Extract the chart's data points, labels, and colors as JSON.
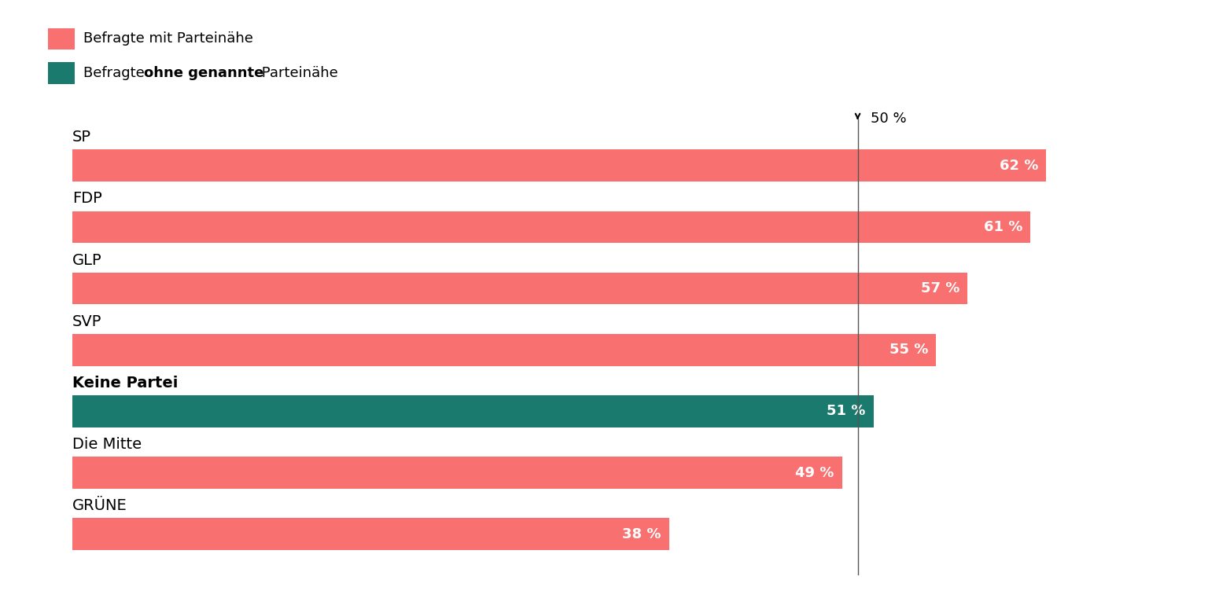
{
  "parties": [
    "SP",
    "FDP",
    "GLP",
    "SVP",
    "Keine Partei",
    "Die Mitte",
    "GRÜNE"
  ],
  "values": [
    62,
    61,
    57,
    55,
    51,
    49,
    38
  ],
  "colors": [
    "#F97070",
    "#F97070",
    "#F97070",
    "#F97070",
    "#1A7A6E",
    "#F97070",
    "#F97070"
  ],
  "salmon_color": "#F97070",
  "teal_color": "#1A7A6E",
  "reference_line": 50,
  "background_color": "#FFFFFF",
  "legend_label_pink": "Befragte mit Parteinähe",
  "legend_label_teal_pre": "Befragte ",
  "legend_label_teal_bold": "ohne genannte",
  "legend_label_teal_post": " Parteinähe",
  "bar_height": 0.52,
  "label_fontsize": 13,
  "party_fontsize": 14,
  "ref_label": "50 %",
  "ref_label_fontsize": 13,
  "keine_partei_bold": true,
  "xlim_max": 70
}
